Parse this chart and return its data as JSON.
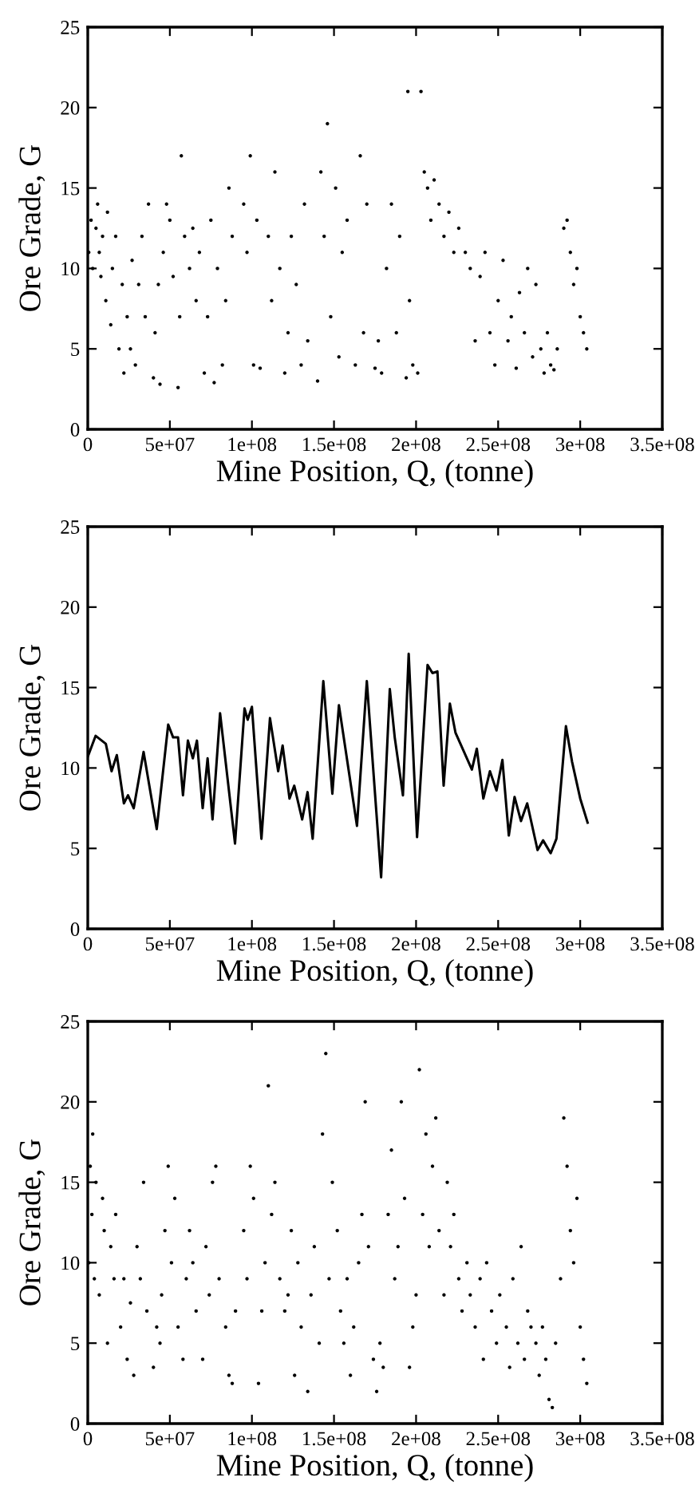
{
  "chart_data": [
    {
      "type": "scatter",
      "xlabel": "Mine Position, Q, (tonne)",
      "ylabel": "Ore Grade, G",
      "marker": "circle",
      "grid": false,
      "legend": false,
      "xlim": [
        0,
        350000000
      ],
      "ylim": [
        0,
        25
      ],
      "xticks": [
        0,
        {
          "value": 50000000,
          "label": "5e+07"
        },
        {
          "value": 100000000,
          "label": "1e+08"
        },
        {
          "value": 150000000,
          "label": "1.5e+08"
        },
        {
          "value": 200000000,
          "label": "2e+08"
        },
        {
          "value": 250000000,
          "label": "2.5e+08"
        },
        {
          "value": 300000000,
          "label": "3e+08"
        },
        {
          "value": 350000000,
          "label": "3.5e+08"
        }
      ],
      "yticks": [
        0,
        5,
        10,
        15,
        20,
        25
      ],
      "series": [
        {
          "color": "#000000",
          "x": [
            600000.0,
            2000000.0,
            3000000.0,
            5000000.0,
            6000000.0,
            7000000.0,
            8000000.0,
            9000000.0,
            11000000.0,
            12000000.0,
            14000000.0,
            15000000.0,
            17000000.0,
            19000000.0,
            21000000.0,
            22000000.0,
            24000000.0,
            26000000.0,
            27000000.0,
            29000000.0,
            31000000.0,
            33000000.0,
            35000000.0,
            37000000.0,
            40000000.0,
            41000000.0,
            43000000.0,
            44000000.0,
            46000000.0,
            48000000.0,
            50000000.0,
            52000000.0,
            55000000.0,
            56000000.0,
            57000000.0,
            59000000.0,
            62000000.0,
            64000000.0,
            66000000.0,
            68000000.0,
            71000000.0,
            73000000.0,
            75000000.0,
            77000000.0,
            79000000.0,
            82000000.0,
            84000000.0,
            86000000.0,
            88000000.0,
            95000000.0,
            97000000.0,
            99000000.0,
            101000000.0,
            103000000.0,
            105000000.0,
            110000000.0,
            112000000.0,
            114000000.0,
            117000000.0,
            120000000.0,
            122000000.0,
            124000000.0,
            127000000.0,
            130000000.0,
            132000000.0,
            134000000.0,
            140000000.0,
            142000000.0,
            144000000.0,
            146000000.0,
            148000000.0,
            151000000.0,
            153000000.0,
            155000000.0,
            158000000.0,
            163000000.0,
            166000000.0,
            168000000.0,
            170000000.0,
            175000000.0,
            177000000.0,
            179000000.0,
            182000000.0,
            185000000.0,
            188000000.0,
            190000000.0,
            194000000.0,
            195000000.0,
            196000000.0,
            198000000.0,
            201000000.0,
            203000000.0,
            205000000.0,
            207000000.0,
            209000000.0,
            211000000.0,
            214000000.0,
            217000000.0,
            220000000.0,
            223000000.0,
            226000000.0,
            230000000.0,
            233000000.0,
            236000000.0,
            239000000.0,
            242000000.0,
            245000000.0,
            248000000.0,
            250000000.0,
            253000000.0,
            256000000.0,
            258000000.0,
            261000000.0,
            263000000.0,
            266000000.0,
            268000000.0,
            271000000.0,
            273000000.0,
            276000000.0,
            278000000.0,
            280000000.0,
            282000000.0,
            284000000.0,
            286000000.0,
            290000000.0,
            292000000.0,
            294000000.0,
            296000000.0,
            298000000.0,
            300000000.0,
            302000000.0,
            304000000.0
          ],
          "values": [
            11,
            13,
            10,
            12.5,
            14,
            11,
            9.5,
            12,
            8,
            13.5,
            6.5,
            10,
            12,
            5,
            9,
            3.5,
            7,
            5,
            10.5,
            4,
            9,
            12,
            7,
            14,
            3.2,
            6,
            9,
            2.8,
            11,
            14,
            13,
            9.5,
            2.6,
            7,
            17,
            12,
            10,
            12.5,
            8,
            11,
            3.5,
            7,
            13,
            2.9,
            10,
            4,
            8,
            15,
            12,
            14,
            11,
            17,
            4,
            13,
            3.8,
            12,
            8,
            16,
            10,
            3.5,
            6,
            12,
            9,
            4,
            14,
            5.5,
            3,
            16,
            12,
            19,
            7,
            15,
            4.5,
            11,
            13,
            4,
            17,
            6,
            14,
            3.8,
            5.5,
            3.5,
            10,
            14,
            6,
            12,
            3.2,
            21,
            8,
            4,
            3.5,
            21,
            16,
            15,
            13,
            15.5,
            14,
            12,
            13.5,
            11,
            12.5,
            11,
            10,
            5.5,
            9.5,
            11,
            6,
            4,
            8,
            10.5,
            5.5,
            7,
            3.8,
            8.5,
            6,
            10,
            4.5,
            9,
            5,
            3.5,
            6,
            4,
            3.7,
            5,
            12.5,
            13,
            11,
            9,
            10,
            7,
            6,
            5
          ]
        }
      ]
    },
    {
      "type": "line",
      "xlabel": "Mine Position, Q, (tonne)",
      "ylabel": "Ore Grade, G",
      "marker": "none",
      "line_style": "solid",
      "grid": false,
      "legend": false,
      "xlim": [
        0,
        350000000
      ],
      "ylim": [
        0,
        25
      ],
      "xticks": [
        0,
        {
          "value": 50000000,
          "label": "5e+07"
        },
        {
          "value": 100000000,
          "label": "1e+08"
        },
        {
          "value": 150000000,
          "label": "1.5e+08"
        },
        {
          "value": 200000000,
          "label": "2e+08"
        },
        {
          "value": 250000000,
          "label": "2.5e+08"
        },
        {
          "value": 300000000,
          "label": "3e+08"
        },
        {
          "value": 350000000,
          "label": "3.5e+08"
        }
      ],
      "yticks": [
        0,
        5,
        10,
        15,
        20,
        25
      ],
      "series": [
        {
          "color": "#000000",
          "x": [
            0,
            4800000.0,
            11000000.0,
            14500000.0,
            17700000.0,
            22000000.0,
            24500000.0,
            28000000.0,
            34000000.0,
            42000000.0,
            49000000.0,
            52000000.0,
            55000000.0,
            58000000.0,
            61000000.0,
            64000000.0,
            66500000.0,
            70000000.0,
            73000000.0,
            76000000.0,
            80600000.0,
            89700000.0,
            95500000.0,
            97400000.0,
            100000000.0,
            105800000.0,
            111000000.0,
            116000000.0,
            118700000.0,
            122900000.0,
            125800000.0,
            130600000.0,
            133900000.0,
            137000000.0,
            143500000.0,
            149000000.0,
            153000000.0,
            164000000.0,
            170000000.0,
            178700000.0,
            184000000.0,
            187000000.0,
            192000000.0,
            195500000.0,
            200600000.0,
            207000000.0,
            210000000.0,
            213000000.0,
            216800000.0,
            220600000.0,
            224000000.0,
            234000000.0,
            237000000.0,
            241000000.0,
            245000000.0,
            249000000.0,
            252600000.0,
            256500000.0,
            260000000.0,
            263900000.0,
            267700000.0,
            274000000.0,
            277400000.0,
            282000000.0,
            285500000.0,
            291300000.0,
            295000000.0,
            300000000.0,
            304500000.0
          ],
          "values": [
            10.7,
            12.0,
            11.5,
            9.8,
            10.8,
            7.8,
            8.3,
            7.5,
            11.0,
            6.2,
            12.7,
            11.9,
            11.9,
            8.3,
            11.7,
            10.6,
            11.7,
            7.5,
            10.6,
            6.8,
            13.4,
            5.3,
            13.7,
            13.0,
            13.8,
            5.6,
            13.1,
            9.8,
            11.4,
            8.1,
            8.9,
            6.8,
            8.5,
            5.6,
            15.4,
            8.4,
            13.9,
            6.4,
            15.4,
            3.2,
            14.9,
            11.9,
            8.3,
            17.1,
            5.7,
            16.4,
            15.9,
            16.0,
            8.9,
            14.0,
            12.2,
            9.9,
            11.2,
            8.1,
            9.8,
            8.6,
            10.5,
            5.8,
            8.2,
            6.7,
            7.8,
            4.9,
            5.5,
            4.7,
            5.6,
            12.6,
            10.4,
            8.1,
            6.6
          ]
        }
      ]
    },
    {
      "type": "scatter",
      "xlabel": "Mine Position, Q, (tonne)",
      "ylabel": "Ore Grade, G",
      "marker": "circle",
      "grid": false,
      "legend": false,
      "xlim": [
        0,
        350000000
      ],
      "ylim": [
        0,
        25
      ],
      "xticks": [
        0,
        {
          "value": 50000000,
          "label": "5e+07"
        },
        {
          "value": 100000000,
          "label": "1e+08"
        },
        {
          "value": 150000000,
          "label": "1.5e+08"
        },
        {
          "value": 200000000,
          "label": "2e+08"
        },
        {
          "value": 250000000,
          "label": "2.5e+08"
        },
        {
          "value": 300000000,
          "label": "3e+08"
        },
        {
          "value": 350000000,
          "label": "3.5e+08"
        }
      ],
      "yticks": [
        0,
        5,
        10,
        15,
        20,
        25
      ],
      "series": [
        {
          "color": "#000000",
          "x": [
            600000.0,
            1500000.0,
            2500000.0,
            3000000.0,
            4000000.0,
            5000000.0,
            7000000.0,
            9000000.0,
            10000000.0,
            12000000.0,
            14000000.0,
            16000000.0,
            17000000.0,
            20000000.0,
            22000000.0,
            24000000.0,
            26000000.0,
            28000000.0,
            30000000.0,
            32000000.0,
            34000000.0,
            36000000.0,
            40000000.0,
            42000000.0,
            44000000.0,
            45000000.0,
            47000000.0,
            49000000.0,
            51000000.0,
            53000000.0,
            55000000.0,
            58000000.0,
            60000000.0,
            62000000.0,
            64000000.0,
            66000000.0,
            70000000.0,
            72000000.0,
            74000000.0,
            76000000.0,
            78000000.0,
            80000000.0,
            84000000.0,
            86000000.0,
            88000000.0,
            90000000.0,
            95000000.0,
            97000000.0,
            99000000.0,
            101000000.0,
            104000000.0,
            106000000.0,
            108000000.0,
            110000000.0,
            112000000.0,
            114000000.0,
            117000000.0,
            120000000.0,
            122000000.0,
            124000000.0,
            126000000.0,
            128000000.0,
            130000000.0,
            134000000.0,
            136000000.0,
            138000000.0,
            141000000.0,
            143000000.0,
            145000000.0,
            147000000.0,
            149000000.0,
            152000000.0,
            154000000.0,
            156000000.0,
            158000000.0,
            160000000.0,
            162000000.0,
            165000000.0,
            167000000.0,
            169000000.0,
            171000000.0,
            174000000.0,
            176000000.0,
            178000000.0,
            180000000.0,
            183000000.0,
            185000000.0,
            187000000.0,
            189000000.0,
            191000000.0,
            193000000.0,
            196000000.0,
            198000000.0,
            200000000.0,
            202000000.0,
            204000000.0,
            206000000.0,
            208000000.0,
            210000000.0,
            212000000.0,
            214000000.0,
            217000000.0,
            219000000.0,
            221000000.0,
            223000000.0,
            226000000.0,
            228000000.0,
            231000000.0,
            233000000.0,
            236000000.0,
            239000000.0,
            241000000.0,
            243000000.0,
            246000000.0,
            249000000.0,
            251000000.0,
            255000000.0,
            257000000.0,
            259000000.0,
            262000000.0,
            264000000.0,
            266000000.0,
            268000000.0,
            270000000.0,
            273000000.0,
            275000000.0,
            277000000.0,
            279000000.0,
            281000000.0,
            283000000.0,
            285000000.0,
            288000000.0,
            290000000.0,
            292000000.0,
            294000000.0,
            296000000.0,
            298000000.0,
            300000000.0,
            302000000.0,
            304000000.0
          ],
          "values": [
            10,
            16,
            13,
            18,
            9,
            15,
            8,
            14,
            12,
            5,
            11,
            9,
            13,
            6,
            9,
            4,
            7.5,
            3,
            11,
            9,
            15,
            7,
            3.5,
            6,
            5,
            8,
            12,
            16,
            10,
            14,
            6,
            4,
            9,
            12,
            10,
            7,
            4,
            11,
            8,
            15,
            16,
            9,
            6,
            3,
            2.5,
            7,
            12,
            9,
            16,
            14,
            2.5,
            7,
            10,
            21,
            13,
            15,
            9,
            7,
            8,
            12,
            3,
            10,
            6,
            2,
            8,
            11,
            5,
            18,
            23,
            9,
            15,
            12,
            7,
            5,
            9,
            3,
            6,
            10,
            13,
            20,
            11,
            4,
            2,
            5,
            3.5,
            13,
            17,
            9,
            11,
            20,
            14,
            3.5,
            6,
            8,
            22,
            13,
            18,
            11,
            16,
            19,
            12,
            8,
            15,
            11,
            13,
            9,
            7,
            10,
            8,
            6,
            9,
            4,
            10,
            7,
            5,
            8,
            6,
            3.5,
            9,
            5,
            11,
            4,
            7,
            6,
            5,
            3,
            6,
            4,
            1.5,
            1,
            5,
            9,
            19,
            16,
            12,
            10,
            14,
            6,
            4,
            2.5
          ]
        }
      ]
    }
  ]
}
